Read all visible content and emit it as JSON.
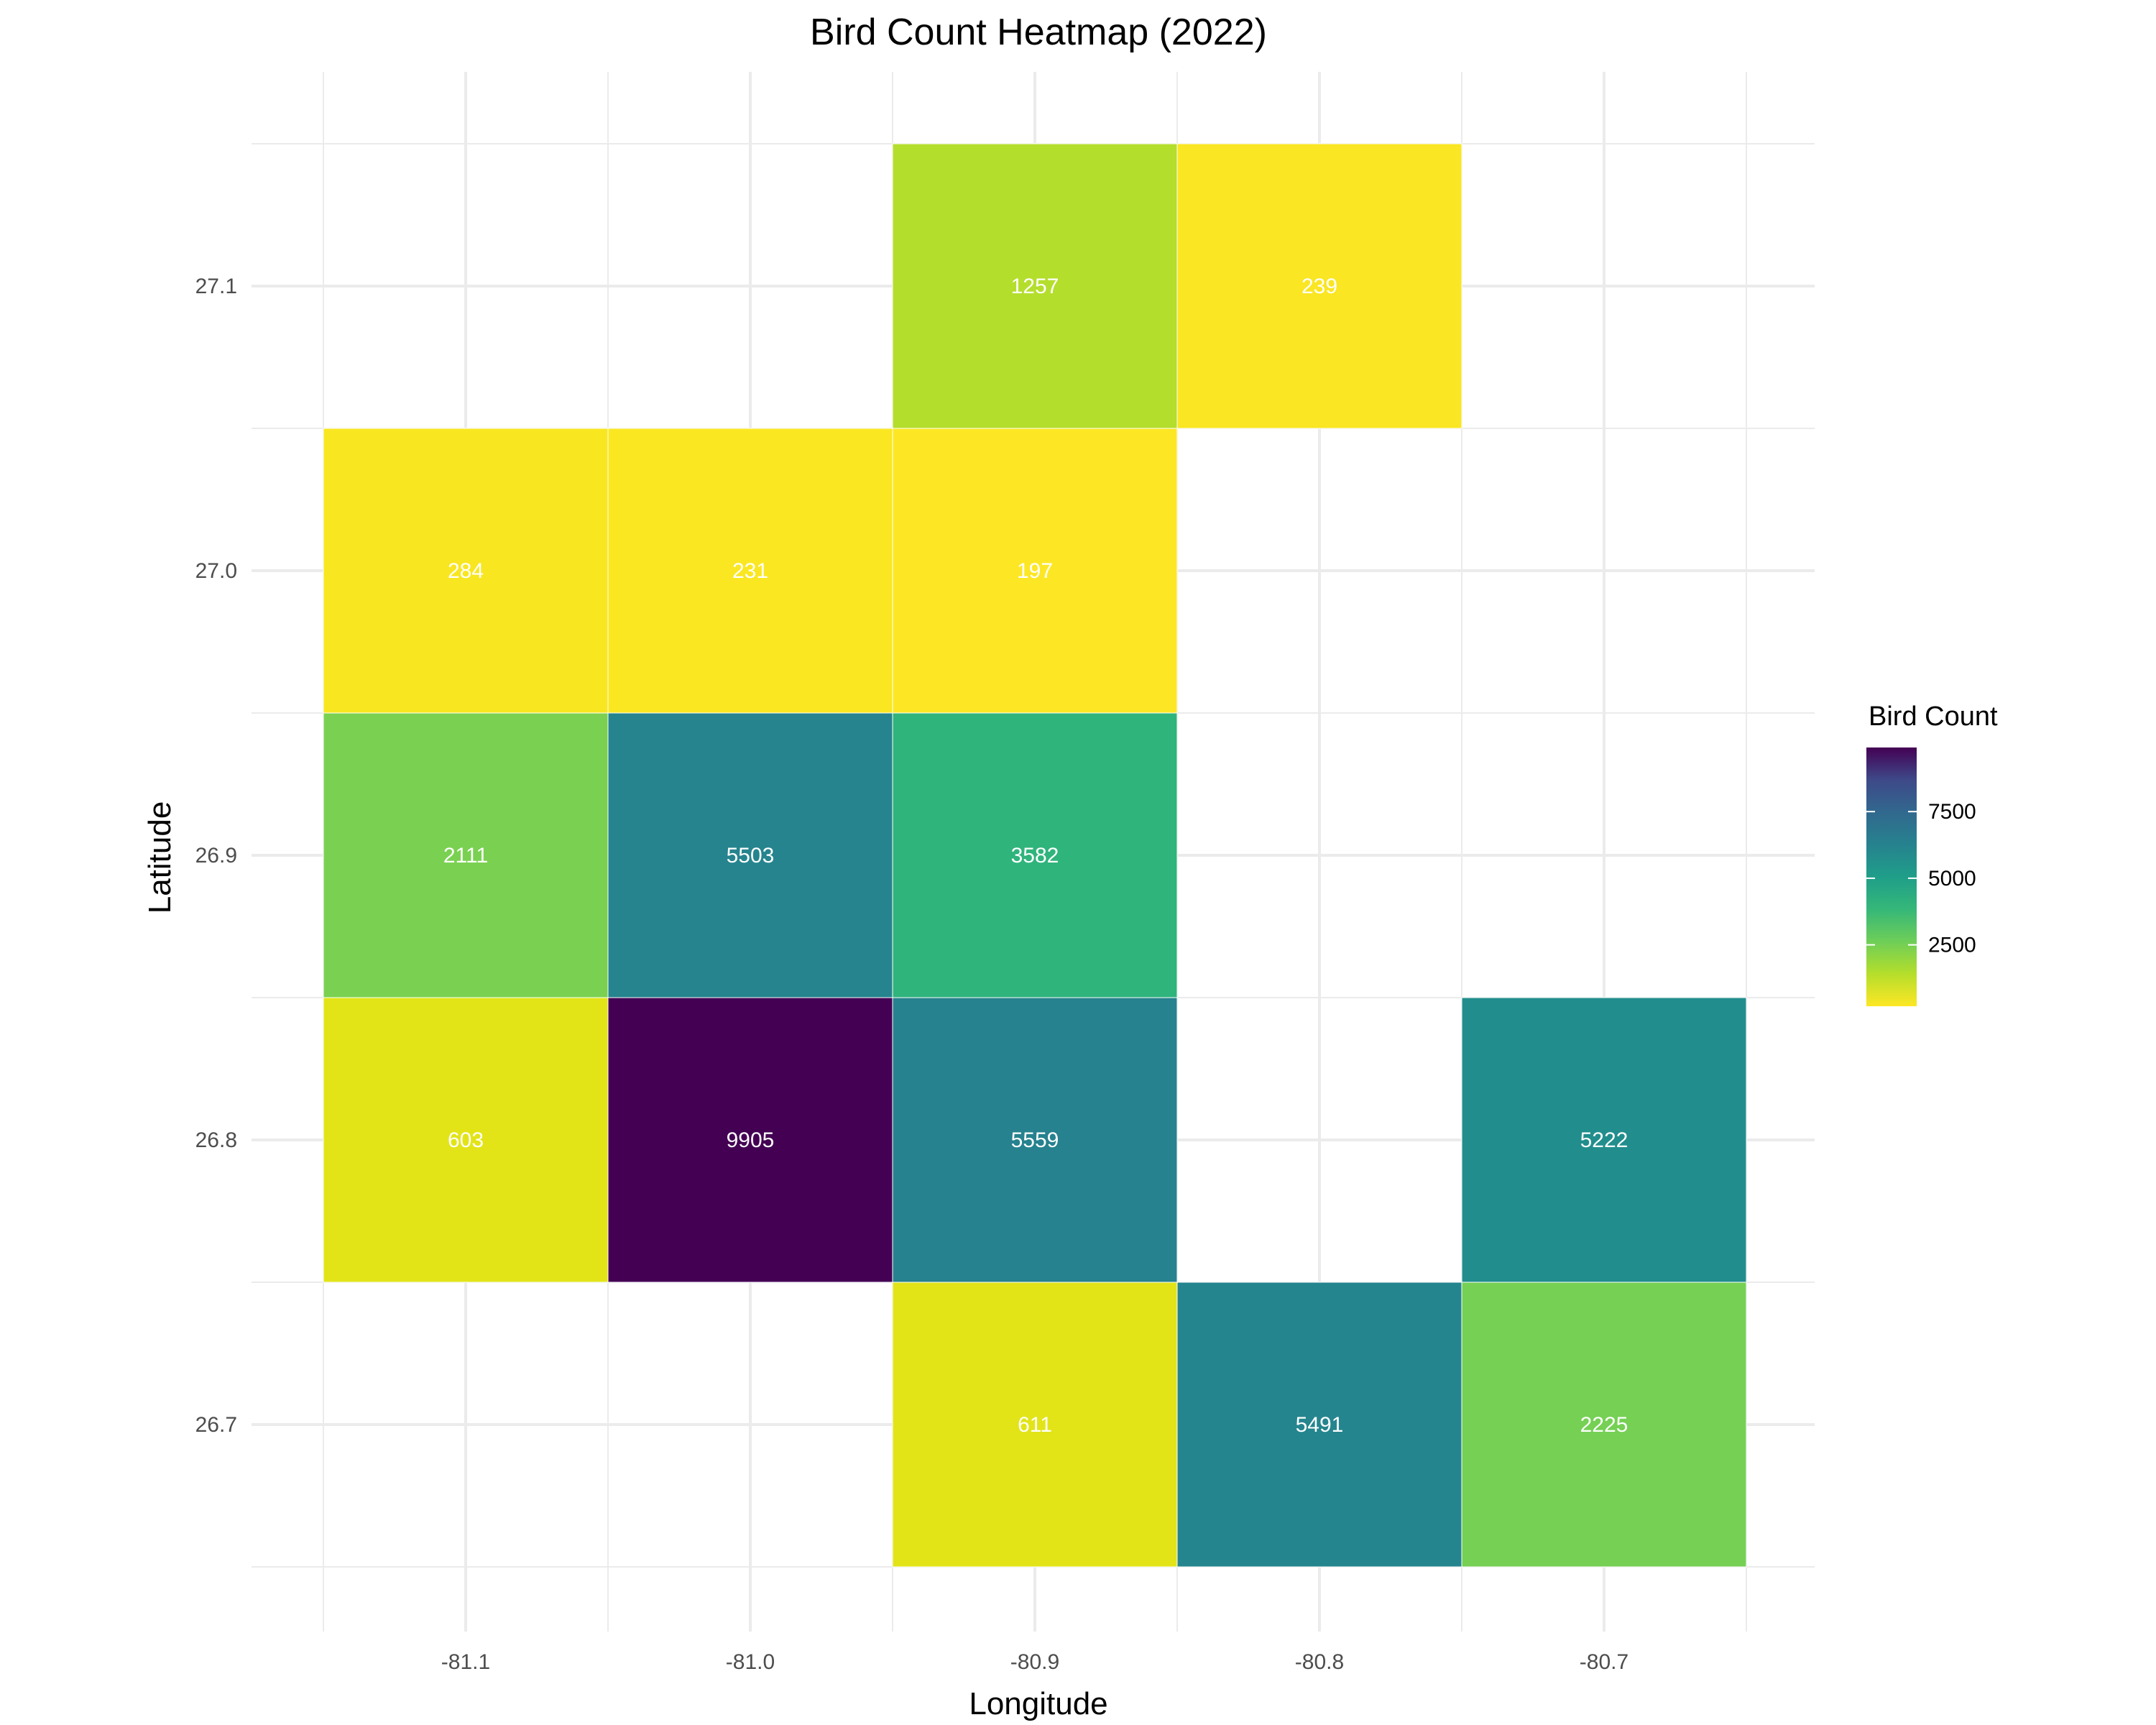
{
  "chart_data": {
    "type": "heatmap",
    "title": "Bird Count Heatmap (2022)",
    "xlabel": "Longitude",
    "ylabel": "Latitude",
    "x_ticks": [
      "-81.1",
      "-81.0",
      "-80.9",
      "-80.8",
      "-80.7"
    ],
    "y_ticks": [
      "27.1",
      "27.0",
      "26.9",
      "26.8",
      "26.7"
    ],
    "xlim": [
      -81.15,
      -80.65
    ],
    "ylim": [
      26.65,
      27.15
    ],
    "grid": true,
    "legend": {
      "title": "Bird Count",
      "position": "right",
      "ticks": [
        "2500",
        "5000",
        "7500"
      ],
      "range": [
        197,
        9905
      ],
      "colormap": "viridis-reversed"
    },
    "cells": [
      {
        "lon": -80.9,
        "lat": 27.1,
        "value": 1257,
        "color": "#b4de2c"
      },
      {
        "lon": -80.8,
        "lat": 27.1,
        "value": 239,
        "color": "#fae622"
      },
      {
        "lon": -81.1,
        "lat": 27.0,
        "value": 284,
        "color": "#f8e621"
      },
      {
        "lon": -81.0,
        "lat": 27.0,
        "value": 231,
        "color": "#fae722"
      },
      {
        "lon": -80.9,
        "lat": 27.0,
        "value": 197,
        "color": "#fde725"
      },
      {
        "lon": -81.1,
        "lat": 26.9,
        "value": 2111,
        "color": "#7ad151"
      },
      {
        "lon": -81.0,
        "lat": 26.9,
        "value": 5503,
        "color": "#25848e"
      },
      {
        "lon": -80.9,
        "lat": 26.9,
        "value": 3582,
        "color": "#2fb47c"
      },
      {
        "lon": -81.1,
        "lat": 26.8,
        "value": 603,
        "color": "#e2e418"
      },
      {
        "lon": -81.0,
        "lat": 26.8,
        "value": 9905,
        "color": "#440154"
      },
      {
        "lon": -80.9,
        "lat": 26.8,
        "value": 5559,
        "color": "#26828e"
      },
      {
        "lon": -80.7,
        "lat": 26.8,
        "value": 5222,
        "color": "#218e8d"
      },
      {
        "lon": -80.9,
        "lat": 26.7,
        "value": 611,
        "color": "#e2e418"
      },
      {
        "lon": -80.8,
        "lat": 26.7,
        "value": 5491,
        "color": "#25858e"
      },
      {
        "lon": -80.7,
        "lat": 26.7,
        "value": 2225,
        "color": "#75d054"
      }
    ]
  }
}
